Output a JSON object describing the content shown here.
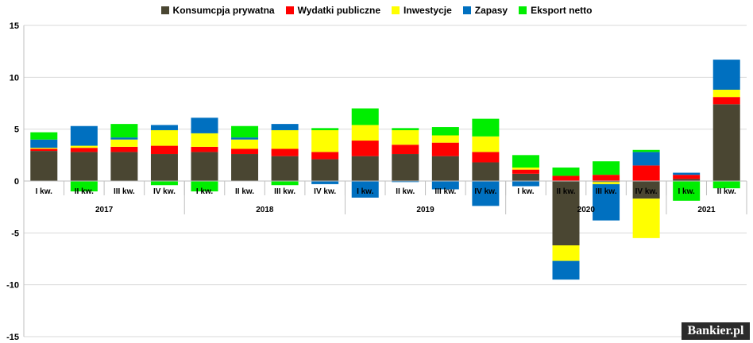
{
  "chart_data": {
    "type": "bar",
    "stacked": true,
    "legend_position": "top",
    "grid": true,
    "ylim": [
      -15,
      15
    ],
    "yticks": [
      15,
      10,
      5,
      0,
      -5,
      -10,
      -15
    ],
    "categories": [
      "I kw.",
      "II kw.",
      "III kw.",
      "IV kw.",
      "I kw.",
      "II kw.",
      "III kw.",
      "IV kw.",
      "I kw.",
      "II kw.",
      "III kw.",
      "IV kw.",
      "I kw.",
      "II kw.",
      "III kw.",
      "IV kw.",
      "I kw.",
      "II kw."
    ],
    "groups": [
      {
        "label": "2017",
        "count": 4
      },
      {
        "label": "2018",
        "count": 4
      },
      {
        "label": "2019",
        "count": 4
      },
      {
        "label": "2020",
        "count": 4
      },
      {
        "label": "2021",
        "count": 2
      }
    ],
    "series": [
      {
        "name": "Konsumcpja prywatna",
        "color": "#4a4632",
        "values": [
          2.9,
          2.8,
          2.8,
          2.6,
          2.8,
          2.6,
          2.4,
          2.1,
          2.4,
          2.6,
          2.4,
          1.8,
          0.7,
          -6.2,
          -0.1,
          -1.7,
          0.2,
          7.4
        ]
      },
      {
        "name": "Wydatki publiczne",
        "color": "#ff0000",
        "values": [
          0.2,
          0.4,
          0.5,
          0.8,
          0.5,
          0.5,
          0.7,
          0.7,
          1.5,
          0.9,
          1.3,
          1.0,
          0.4,
          0.5,
          0.6,
          1.5,
          0.4,
          0.7
        ]
      },
      {
        "name": "Inwestycje",
        "color": "#ffff00",
        "values": [
          0.1,
          0.2,
          0.7,
          1.5,
          1.3,
          0.9,
          1.8,
          2.1,
          1.5,
          1.4,
          0.7,
          1.5,
          0.2,
          -1.5,
          -0.2,
          -3.8,
          0.0,
          0.7
        ]
      },
      {
        "name": "Zapasy",
        "color": "#0070c0",
        "values": [
          0.8,
          1.9,
          0.2,
          0.5,
          1.5,
          0.2,
          0.6,
          -0.3,
          -1.6,
          -0.1,
          -0.8,
          -2.4,
          -0.5,
          -1.8,
          -3.5,
          1.3,
          0.2,
          2.9
        ]
      },
      {
        "name": "Eksport netto",
        "color": "#00ee00",
        "values": [
          0.7,
          -1.0,
          1.3,
          -0.4,
          -1.0,
          1.1,
          -0.4,
          0.2,
          1.6,
          0.2,
          0.8,
          1.7,
          1.2,
          0.8,
          1.3,
          0.2,
          -1.9,
          -0.7
        ]
      }
    ]
  },
  "branding": {
    "logo_text": "Bankier.pl"
  }
}
